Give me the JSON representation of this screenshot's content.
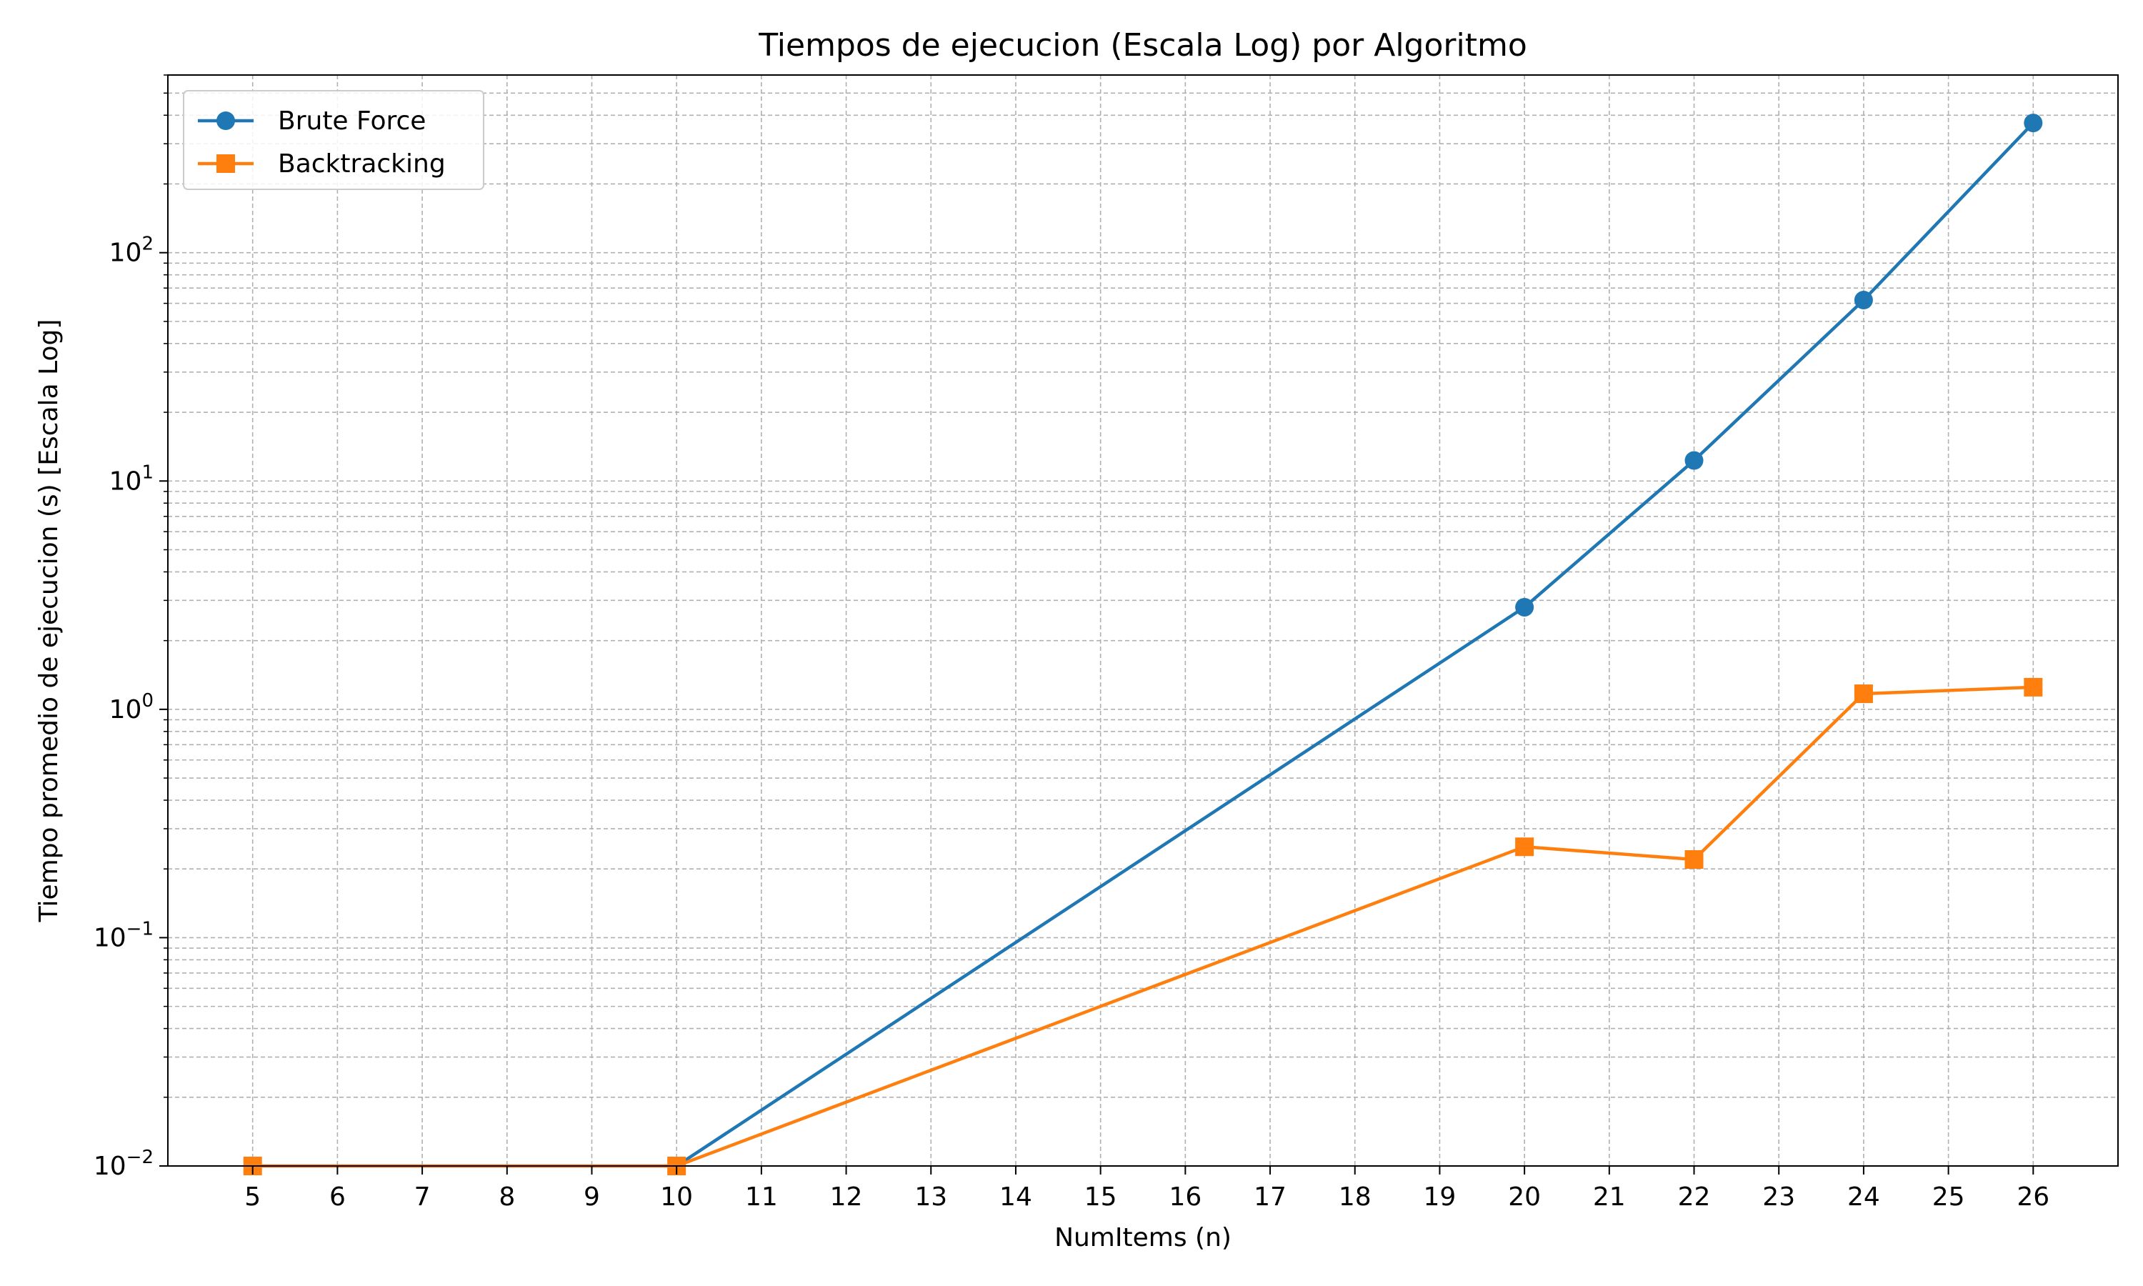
{
  "chart_data": {
    "type": "line",
    "title": "Tiempos de ejecucion (Escala Log) por Algoritmo",
    "xlabel": "NumItems (n)",
    "ylabel": "Tiempo promedio de ejecucion (s) [Escala Log]",
    "xlim": [
      4,
      27
    ],
    "ylim": [
      0.01,
      600
    ],
    "yscale": "log",
    "xticks": [
      5,
      6,
      7,
      8,
      9,
      10,
      11,
      12,
      13,
      14,
      15,
      16,
      17,
      18,
      19,
      20,
      21,
      22,
      23,
      24,
      25,
      26
    ],
    "yticks": [
      {
        "value": 0.01,
        "base": "10",
        "exp": "−2"
      },
      {
        "value": 0.1,
        "base": "10",
        "exp": "−1"
      },
      {
        "value": 1,
        "base": "10",
        "exp": "0"
      },
      {
        "value": 10,
        "base": "10",
        "exp": "1"
      },
      {
        "value": 100,
        "base": "10",
        "exp": "2"
      }
    ],
    "grid": true,
    "legend_position": "top-left",
    "series": [
      {
        "name": "Brute Force",
        "color": "#1f77b4",
        "marker": "circle",
        "x": [
          5,
          10,
          20,
          22,
          24,
          26
        ],
        "y": [
          0.01,
          0.01,
          2.8,
          12.3,
          62,
          370
        ]
      },
      {
        "name": "Backtracking",
        "color": "#ff7f0e",
        "marker": "square",
        "x": [
          5,
          10,
          20,
          22,
          24,
          26
        ],
        "y": [
          0.01,
          0.01,
          0.25,
          0.22,
          1.17,
          1.25
        ]
      }
    ]
  }
}
